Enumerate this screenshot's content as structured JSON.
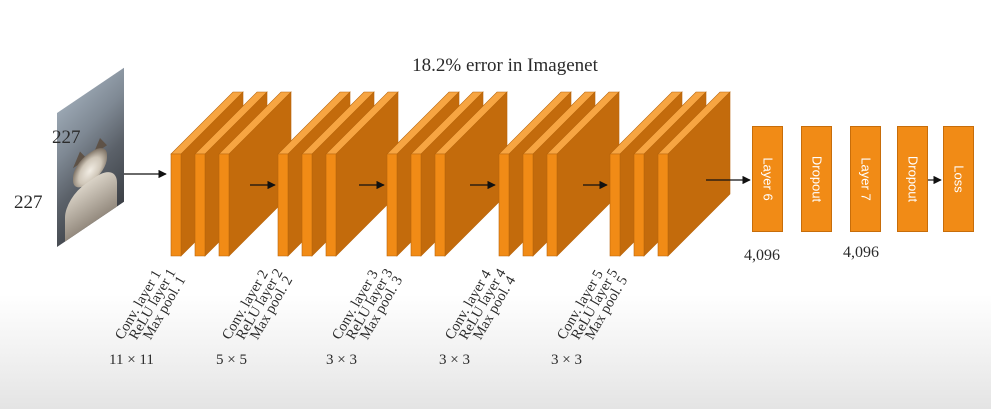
{
  "title": "18.2% error in Imagenet",
  "input": {
    "width": "227",
    "height": "227",
    "image": "cat-photo"
  },
  "conv_layers": [
    {
      "labels": [
        "Conv. layer 1",
        "ReLU layer 1",
        "Max pool. 1"
      ],
      "kernel": "11 × 11"
    },
    {
      "labels": [
        "Conv. layer 2",
        "ReLU layer 2",
        "Max pool. 2"
      ],
      "kernel": "5 × 5"
    },
    {
      "labels": [
        "Conv. layer 3",
        "ReLU layer 3",
        "Max pool. 3"
      ],
      "kernel": "3 × 3"
    },
    {
      "labels": [
        "Conv. layer 4",
        "ReLU layer 4",
        "Max pool. 4"
      ],
      "kernel": "3 × 3"
    },
    {
      "labels": [
        "Conv. layer 5",
        "ReLU layer 5",
        "Max pool. 5"
      ],
      "kernel": "3 × 3"
    }
  ],
  "fc_blocks": [
    {
      "label": "Layer 6"
    },
    {
      "label": "Dropout"
    },
    {
      "label": "Layer 7"
    },
    {
      "label": "Dropout"
    },
    {
      "label": "Loss"
    }
  ],
  "fc_units": [
    "4,096",
    "4,096"
  ],
  "colors": {
    "block": "#f18b16",
    "block_top": "#f7a542",
    "block_side": "#c36b0c",
    "arrow": "#111111"
  }
}
